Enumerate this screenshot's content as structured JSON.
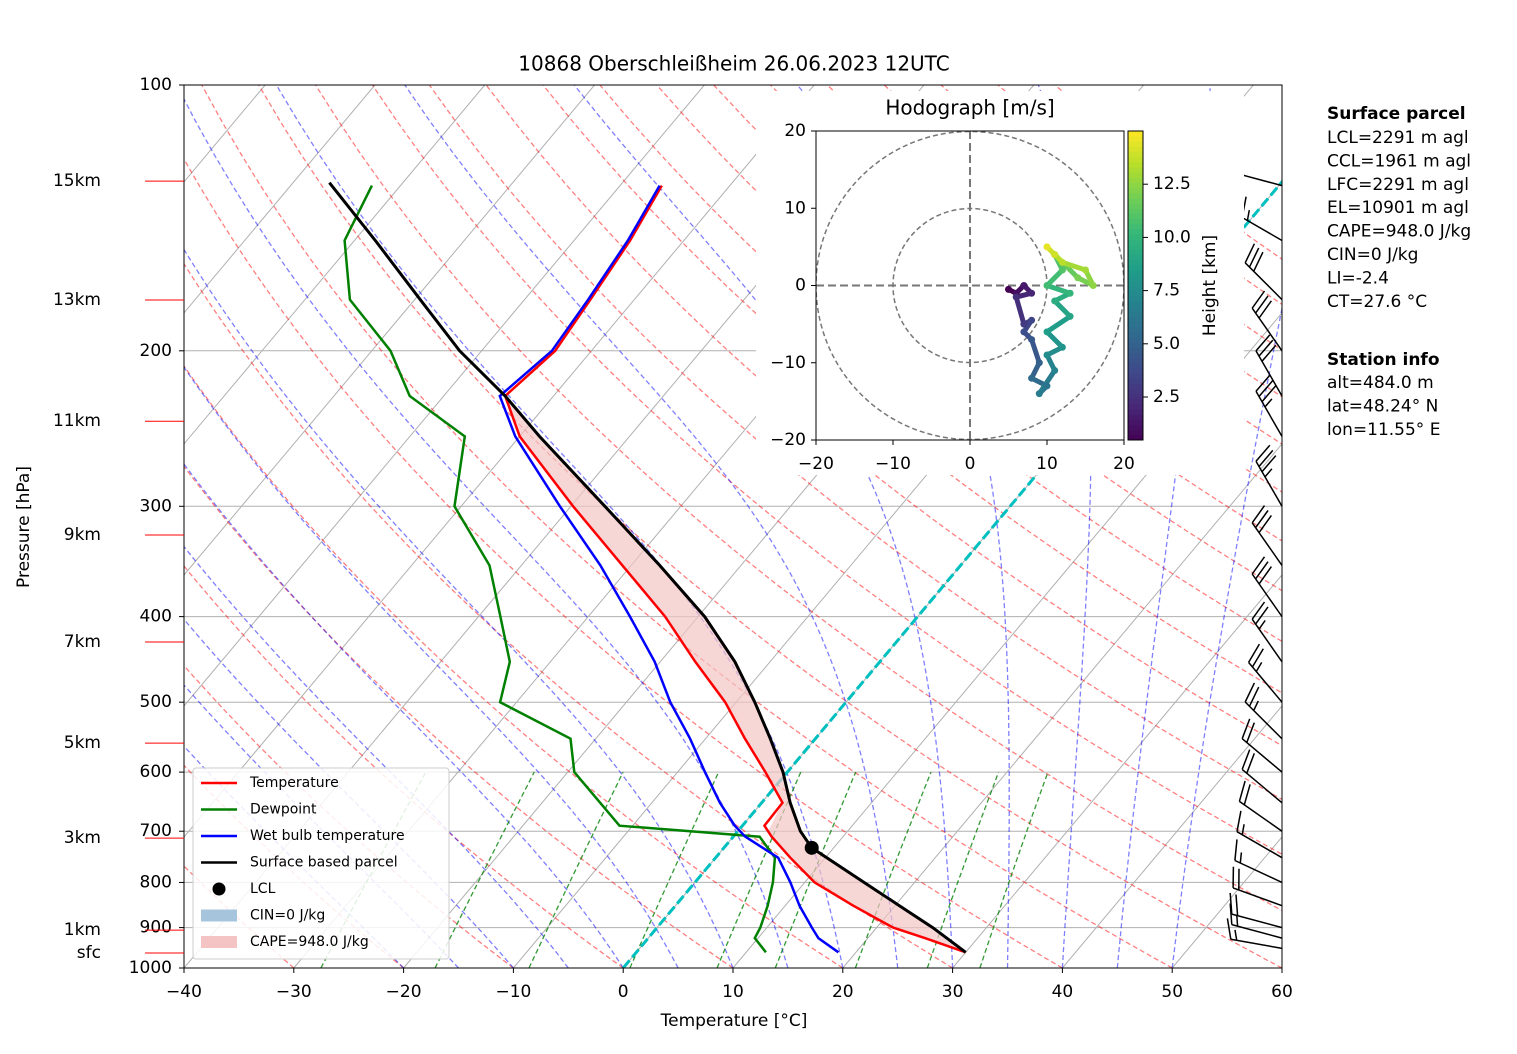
{
  "chart_data": [
    {
      "type": "skewt",
      "title": "10868 Oberschleißheim 26.06.2023 12UTC",
      "xlabel": "Temperature [°C]",
      "ylabel": "Pressure [hPa]",
      "xlim": [
        -40,
        60
      ],
      "xticks": [
        {
          "value": -40,
          "label": "−40"
        },
        {
          "value": -30,
          "label": "−30"
        },
        {
          "value": -20,
          "label": "−20"
        },
        {
          "value": -10,
          "label": "−10"
        },
        0,
        10,
        20,
        30,
        40,
        50,
        60
      ],
      "ylim": [
        1000,
        100
      ],
      "yticks": [
        100,
        200,
        300,
        400,
        500,
        600,
        700,
        800,
        900,
        1000
      ],
      "yscale": "log",
      "grid": true,
      "legend": "lower left",
      "pressure": [
        960,
        925,
        900,
        850,
        800,
        750,
        710,
        690,
        650,
        600,
        550,
        500,
        450,
        400,
        350,
        300,
        250,
        225,
        200,
        175,
        150,
        130
      ],
      "series": [
        {
          "name": "Temperature",
          "color": "#ff0000",
          "values": [
            30.0,
            25.2,
            21.5,
            16.2,
            10.9,
            6.8,
            3.5,
            2.0,
            1.9,
            -2.0,
            -6.4,
            -11.0,
            -16.8,
            -23.0,
            -30.8,
            -39.8,
            -50.0,
            -54.4,
            -53.3,
            -54.0,
            -54.9,
            -56.2
          ]
        },
        {
          "name": "Dewpoint",
          "color": "#008000",
          "values": [
            11.8,
            9.7,
            9.4,
            8.4,
            7.1,
            5.4,
            2.4,
            -11.2,
            -14.7,
            -19.4,
            -22.3,
            -31.5,
            -33.7,
            -38.0,
            -42.9,
            -50.6,
            -55.0,
            -63.1,
            -68.3,
            -75.9,
            -80.9,
            -82.6
          ]
        },
        {
          "name": "Wet bulb temperature",
          "color": "#0000ff",
          "values": [
            18.4,
            15.5,
            14.1,
            11.3,
            8.7,
            5.7,
            1.1,
            -0.7,
            -3.8,
            -7.5,
            -11.4,
            -16.0,
            -20.5,
            -26.2,
            -32.8,
            -41.0,
            -50.4,
            -54.9,
            -53.6,
            -54.2,
            -55.1,
            -56.4
          ]
        }
      ],
      "parcel": {
        "name": "Surface based parcel",
        "color": "#000000",
        "pressure": [
          960,
          900,
          850,
          800,
          731,
          700,
          650,
          600,
          550,
          500,
          450,
          400,
          350,
          300,
          250,
          225,
          200,
          175,
          150,
          129
        ],
        "values": [
          30.0,
          25.1,
          20.4,
          15.4,
          8.0,
          5.7,
          2.6,
          -0.4,
          -4.1,
          -8.3,
          -13.2,
          -19.4,
          -27.4,
          -36.9,
          -48.2,
          -54.4,
          -62.0,
          -69.5,
          -78.1,
          -86.7
        ]
      },
      "lcl": {
        "name": "LCL",
        "pressure": 731,
        "value": 8.0,
        "color": "#000000"
      },
      "cin_label": "CIN=0 J/kg",
      "cin_color": "#a6c4dc",
      "cape_label": "CAPE=948.0 J/kg",
      "cape_color": "#f4c4c4",
      "highlight_isotherm": {
        "value": 0,
        "color": "#00bfbf"
      },
      "height_labels": [
        {
          "value": 128.5,
          "label": "15km"
        },
        {
          "value": 175.2,
          "label": "13km"
        },
        {
          "value": 240.3,
          "label": "11km"
        },
        {
          "value": 323.3,
          "label": "9km"
        },
        {
          "value": 427.4,
          "label": "7km"
        },
        {
          "value": 556.3,
          "label": "5km"
        },
        {
          "value": 712.6,
          "label": "3km"
        },
        {
          "value": 905.9,
          "label": "1km"
        },
        {
          "value": 961.6,
          "label": "sfc"
        }
      ],
      "height_label_color": "#ff0000",
      "wind": {
        "pressure": [
          950,
          925,
          900,
          850,
          800,
          750,
          700,
          650,
          600,
          550,
          500,
          450,
          400,
          350,
          300,
          250,
          225,
          200,
          175,
          150,
          130
        ],
        "direction": [
          280,
          285,
          285,
          290,
          295,
          300,
          305,
          310,
          310,
          315,
          320,
          325,
          325,
          325,
          330,
          330,
          330,
          325,
          315,
          300,
          285
        ],
        "speed": [
          15,
          15,
          20,
          20,
          15,
          15,
          20,
          20,
          20,
          25,
          25,
          25,
          30,
          30,
          35,
          35,
          30,
          30,
          30,
          25,
          25
        ]
      }
    },
    {
      "type": "hodograph",
      "title": "Hodograph [m/s]",
      "xlim": [
        -20,
        20
      ],
      "ylim": [
        -20,
        20
      ],
      "xticks": [
        {
          "value": -20,
          "label": "−20"
        },
        {
          "value": -10,
          "label": "−10"
        },
        0,
        10,
        20
      ],
      "yticks": [
        {
          "value": -20,
          "label": "−20"
        },
        {
          "value": -10,
          "label": "−10"
        },
        0,
        10,
        20
      ],
      "u": [
        5,
        6,
        7,
        8,
        6,
        7,
        8,
        7,
        8,
        9,
        8,
        10,
        9,
        11,
        10,
        12,
        10,
        13,
        11,
        13,
        10,
        12,
        11,
        14,
        16,
        15,
        12,
        11,
        10
      ],
      "v": [
        -0.5,
        -1,
        0,
        -1,
        -1.5,
        -5,
        -4.5,
        -6,
        -7,
        -10,
        -12,
        -13,
        -14,
        -11,
        -9,
        -8,
        -6,
        -4,
        -2,
        -1,
        0,
        2,
        4,
        1,
        0,
        2,
        3,
        4,
        5
      ],
      "height": [
        0.5,
        1,
        1.5,
        2,
        2.5,
        3,
        3.5,
        4,
        4.5,
        5,
        5.5,
        6,
        6.5,
        7,
        7.5,
        8,
        8.5,
        9,
        9.5,
        10,
        10.5,
        11,
        11.5,
        12,
        12.5,
        13,
        13.5,
        14,
        14.5
      ],
      "colormap": "viridis",
      "colorbar_label": "Height [km]",
      "clim": [
        0.48,
        15.0
      ],
      "cticks": [
        2.5,
        {
          "value": 5,
          "label": "5.0"
        },
        7.5,
        {
          "value": 10,
          "label": "10.0"
        },
        12.5
      ]
    }
  ],
  "info": {
    "surface_parcel": {
      "heading": "Surface parcel",
      "lines": [
        "LCL=2291 m agl",
        "CCL=1961 m agl",
        "LFC=2291 m agl",
        "EL=10901 m agl",
        "CAPE=948.0 J/kg",
        "CIN=0 J/kg",
        "LI=-2.4",
        "CT=27.6 °C"
      ]
    },
    "station": {
      "heading": "Station info",
      "lines": [
        "alt=484.0 m",
        "lat=48.24° N",
        "lon=11.55° E"
      ]
    }
  }
}
